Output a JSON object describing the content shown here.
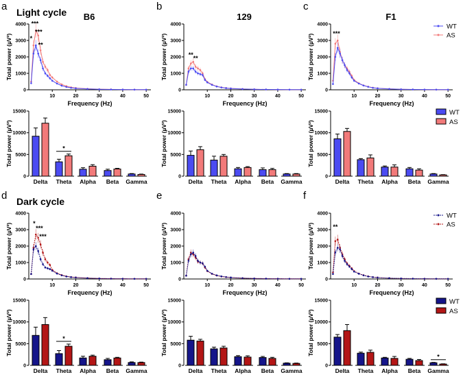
{
  "colors": {
    "light": {
      "WT": "#4b4bf2",
      "AS": "#f27a7a"
    },
    "dark": {
      "WT": "#15158a",
      "AS": "#b31616"
    }
  },
  "row_titles": [
    "Light cycle",
    "Dark cycle"
  ],
  "column_titles": [
    "B6",
    "129",
    "F1"
  ],
  "legend": [
    "WT",
    "AS"
  ],
  "chart_data": {
    "line_common": {
      "type": "line",
      "xlabel": "Frequency (Hz)",
      "ylabel": "Total power (µV²)",
      "xlim": [
        0,
        52
      ],
      "ylim": [
        0,
        4000
      ],
      "xticks": [
        10,
        20,
        30,
        40,
        50
      ],
      "yticks": [
        0,
        1000,
        2000,
        3000,
        4000
      ],
      "x": [
        1,
        2,
        3,
        4,
        5,
        6,
        7,
        8,
        9,
        10,
        12,
        14,
        16,
        18,
        20,
        25,
        30,
        35,
        40,
        45,
        50
      ]
    },
    "bar_common": {
      "type": "bar",
      "ylabel": "Total power (µV²)",
      "ylim": [
        0,
        15000
      ],
      "yticks": [
        0,
        5000,
        10000,
        15000
      ],
      "categories": [
        "Delta",
        "Theta",
        "Alpha",
        "Beta",
        "Gamma"
      ]
    },
    "panels": [
      {
        "letter": "a",
        "cycle": "light",
        "line": {
          "WT": [
            400,
            2200,
            2700,
            2200,
            1800,
            1300,
            1000,
            850,
            700,
            550,
            380,
            250,
            170,
            120,
            90,
            50,
            30,
            20,
            15,
            10,
            8
          ],
          "AS": [
            500,
            2700,
            3600,
            3300,
            2400,
            1700,
            1400,
            1200,
            900,
            750,
            500,
            330,
            220,
            150,
            110,
            60,
            35,
            25,
            18,
            12,
            10
          ],
          "sig": [
            {
              "x": 1,
              "text": "*",
              "y": 3000
            },
            {
              "x": 2.6,
              "text": "***",
              "y": 3900
            },
            {
              "x": 4.2,
              "text": "***",
              "y": 3400
            },
            {
              "x": 5,
              "text": "**",
              "y": 2600
            }
          ]
        },
        "bars": {
          "WT": [
            9200,
            3300,
            1600,
            1300,
            500
          ],
          "WT_err": [
            1900,
            600,
            350,
            300,
            100
          ],
          "AS": [
            12200,
            4700,
            2300,
            1650,
            400
          ],
          "AS_err": [
            1200,
            400,
            350,
            150,
            80
          ],
          "sig": [
            {
              "category": "Theta",
              "text": "*"
            }
          ]
        }
      },
      {
        "letter": "b",
        "cycle": "light",
        "line": {
          "WT": [
            300,
            1100,
            1300,
            1300,
            1100,
            1000,
            950,
            900,
            600,
            450,
            300,
            200,
            140,
            100,
            80,
            45,
            30,
            20,
            15,
            10,
            8
          ],
          "AS": [
            300,
            1300,
            1600,
            1700,
            1400,
            1300,
            1200,
            1000,
            650,
            480,
            320,
            210,
            150,
            110,
            85,
            50,
            30,
            20,
            15,
            10,
            8
          ],
          "sig": [
            {
              "x": 3,
              "text": "**",
              "y": 2000
            },
            {
              "x": 5,
              "text": "**",
              "y": 1800
            }
          ]
        },
        "bars": {
          "WT": [
            4800,
            3700,
            1700,
            1500,
            500
          ],
          "WT_err": [
            1000,
            900,
            300,
            400,
            100
          ],
          "AS": [
            6100,
            4600,
            2000,
            1500,
            500
          ],
          "AS_err": [
            700,
            400,
            200,
            300,
            100
          ],
          "sig": []
        }
      },
      {
        "letter": "c",
        "cycle": "light",
        "line": {
          "WT": [
            350,
            2000,
            2550,
            2200,
            1800,
            1500,
            1200,
            1000,
            750,
            550,
            380,
            260,
            180,
            120,
            90,
            50,
            30,
            20,
            15,
            10,
            8
          ],
          "AS": [
            550,
            2800,
            3000,
            2300,
            1800,
            1500,
            1300,
            1100,
            850,
            600,
            400,
            270,
            190,
            130,
            95,
            55,
            30,
            20,
            15,
            10,
            8
          ],
          "sig": [
            {
              "x": 2.5,
              "text": "***",
              "y": 3300
            }
          ]
        },
        "bars": {
          "WT": [
            8600,
            3800,
            2100,
            1700,
            500
          ],
          "WT_err": [
            1100,
            250,
            250,
            300,
            100
          ],
          "AS": [
            10300,
            4200,
            2100,
            1400,
            300
          ],
          "AS_err": [
            700,
            700,
            500,
            300,
            60
          ],
          "sig": []
        }
      },
      {
        "letter": "d",
        "cycle": "dark",
        "line": {
          "WT": [
            300,
            1800,
            2000,
            1700,
            1200,
            900,
            700,
            650,
            600,
            500,
            330,
            220,
            150,
            110,
            90,
            50,
            30,
            20,
            15,
            10,
            8
          ],
          "AS": [
            300,
            1900,
            2700,
            2500,
            2100,
            1600,
            1200,
            1000,
            850,
            550,
            350,
            240,
            160,
            120,
            95,
            55,
            30,
            20,
            15,
            10,
            8
          ],
          "sig": [
            {
              "x": 2.3,
              "text": "*",
              "y": 3250
            },
            {
              "x": 4.5,
              "text": "***",
              "y": 2950
            },
            {
              "x": 6,
              "text": "***",
              "y": 2450
            }
          ]
        },
        "bars": {
          "WT": [
            6900,
            2700,
            1700,
            1300,
            650
          ],
          "WT_err": [
            1900,
            700,
            400,
            300,
            150
          ],
          "AS": [
            9400,
            4400,
            2100,
            1700,
            650
          ],
          "AS_err": [
            1600,
            500,
            250,
            150,
            100
          ],
          "sig": [
            {
              "category": "Theta",
              "text": "*"
            }
          ]
        }
      },
      {
        "letter": "e",
        "cycle": "dark",
        "line": {
          "WT": [
            200,
            1100,
            1500,
            1600,
            1400,
            1100,
            1000,
            950,
            750,
            500,
            320,
            220,
            160,
            120,
            90,
            50,
            30,
            20,
            15,
            10,
            8
          ],
          "AS": [
            200,
            1200,
            1600,
            1500,
            1300,
            1050,
            1000,
            950,
            700,
            480,
            310,
            210,
            150,
            115,
            88,
            50,
            30,
            20,
            15,
            10,
            8
          ],
          "sig": []
        },
        "bars": {
          "WT": [
            5800,
            3800,
            2000,
            1800,
            500
          ],
          "WT_err": [
            900,
            400,
            250,
            250,
            80
          ],
          "AS": [
            5600,
            4000,
            1900,
            1600,
            450
          ],
          "AS_err": [
            400,
            400,
            300,
            250,
            80
          ],
          "sig": []
        }
      },
      {
        "letter": "f",
        "cycle": "dark",
        "line": {
          "WT": [
            300,
            1600,
            1900,
            1800,
            1400,
            1100,
            900,
            750,
            600,
            450,
            320,
            220,
            150,
            110,
            85,
            50,
            30,
            20,
            15,
            10,
            8
          ],
          "AS": [
            400,
            2300,
            2400,
            1900,
            1500,
            1200,
            950,
            800,
            650,
            480,
            330,
            230,
            160,
            115,
            90,
            50,
            30,
            20,
            15,
            10,
            8
          ],
          "sig": [
            {
              "x": 2,
              "text": "**",
              "y": 3050
            }
          ]
        },
        "bars": {
          "WT": [
            6500,
            2800,
            1700,
            1400,
            600
          ],
          "WT_err": [
            600,
            250,
            150,
            200,
            80
          ],
          "AS": [
            8000,
            3000,
            1600,
            1100,
            300
          ],
          "AS_err": [
            1400,
            500,
            450,
            250,
            60
          ],
          "sig": [
            {
              "category": "Gamma",
              "text": "*"
            }
          ]
        }
      }
    ]
  }
}
